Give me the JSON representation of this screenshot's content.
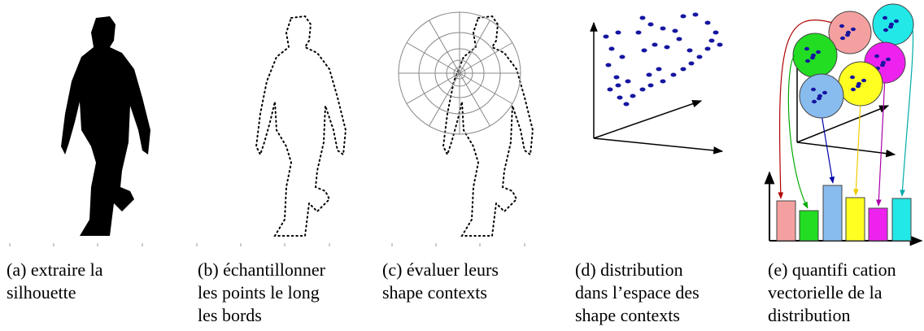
{
  "panels": [
    {
      "caption_lines": [
        "(a) extraire la",
        "silhouette"
      ]
    },
    {
      "caption_lines": [
        "(b) échantillonner",
        "les points le long",
        "les bords"
      ]
    },
    {
      "caption_lines": [
        "(c) évaluer leurs",
        "shape contexts"
      ]
    },
    {
      "caption_lines": [
        "(d) distribution",
        "dans l’espace des",
        "shape contexts"
      ]
    },
    {
      "caption_lines": [
        "(e) quantifi cation",
        "vectorielle de la",
        "distribution"
      ]
    }
  ]
}
